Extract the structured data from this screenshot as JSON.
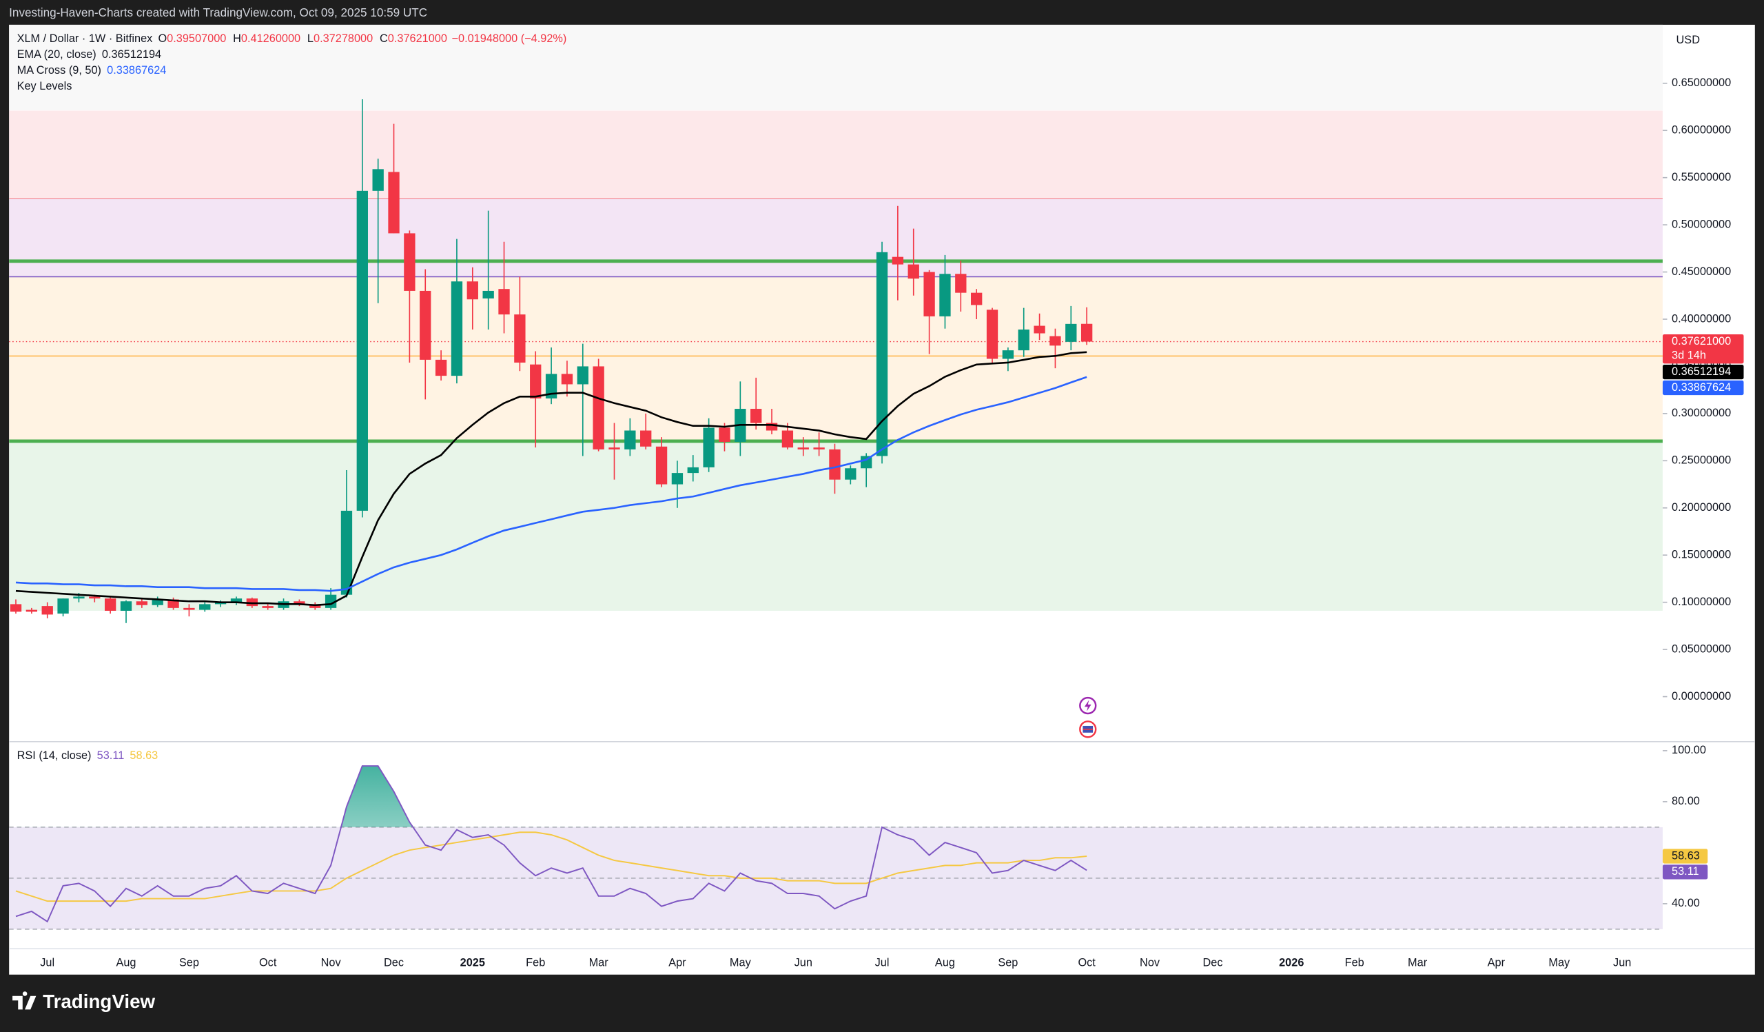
{
  "header": "Investing-Haven-Charts created with TradingView.com, Oct 09, 2025 10:59 UTC",
  "brand": "TradingView",
  "chart_data": [
    {
      "type": "candlestick",
      "title": "XLM / Dollar · 1W · Bitfinex",
      "ohlc_legend": [
        {
          "label": "O",
          "value": "0.39507000"
        },
        {
          "label": "H",
          "value": "0.41260000"
        },
        {
          "label": "L",
          "value": "0.37278000"
        },
        {
          "label": "C",
          "value": "0.37621000"
        }
      ],
      "change": "−0.01948000 (−4.92%)",
      "currency": "USD",
      "countdown": "3d 14h",
      "last_price_label": "0.37621000",
      "x": [
        0,
        1,
        2,
        3,
        4,
        5,
        6,
        7,
        8,
        9,
        10,
        11,
        12,
        13,
        14,
        15,
        16,
        17,
        18,
        19,
        20,
        21,
        22,
        23,
        24,
        25,
        26,
        27,
        28,
        29,
        30,
        31,
        32,
        33,
        34,
        35,
        36,
        37,
        38,
        39,
        40,
        41,
        42,
        43,
        44,
        45,
        46,
        47,
        48,
        49,
        50,
        51,
        52,
        53,
        54,
        55,
        56,
        57,
        58,
        59,
        60,
        61,
        62,
        63,
        64,
        65,
        66,
        67,
        68
      ],
      "xlim": [
        -0.43,
        104.57
      ],
      "xticks": [
        {
          "value": 2,
          "label": "Jul"
        },
        {
          "value": 7,
          "label": "Aug"
        },
        {
          "value": 11,
          "label": "Sep"
        },
        {
          "value": 16,
          "label": "Oct"
        },
        {
          "value": 20,
          "label": "Nov"
        },
        {
          "value": 24,
          "label": "Dec"
        },
        {
          "value": 29,
          "label": "2025"
        },
        {
          "value": 33,
          "label": "Feb"
        },
        {
          "value": 37,
          "label": "Mar"
        },
        {
          "value": 42,
          "label": "Apr"
        },
        {
          "value": 46,
          "label": "May"
        },
        {
          "value": 50,
          "label": "Jun"
        },
        {
          "value": 55,
          "label": "Jul"
        },
        {
          "value": 59,
          "label": "Aug"
        },
        {
          "value": 63,
          "label": "Sep"
        },
        {
          "value": 68,
          "label": "Oct"
        },
        {
          "value": 72,
          "label": "Nov"
        },
        {
          "value": 76,
          "label": "Dec"
        },
        {
          "value": 81,
          "label": "2026"
        },
        {
          "value": 85,
          "label": "Feb"
        },
        {
          "value": 89,
          "label": "Mar"
        },
        {
          "value": 94,
          "label": "Apr"
        },
        {
          "value": 98,
          "label": "May"
        },
        {
          "value": 102,
          "label": "Jun"
        }
      ],
      "ylim": [
        -0.0465,
        0.712
      ],
      "yticks": [
        {
          "value": 0,
          "label": "0.00000000"
        },
        {
          "value": 0.05,
          "label": "0.05000000"
        },
        {
          "value": 0.1,
          "label": "0.10000000"
        },
        {
          "value": 0.15,
          "label": "0.15000000"
        },
        {
          "value": 0.2,
          "label": "0.20000000"
        },
        {
          "value": 0.25,
          "label": "0.25000000"
        },
        {
          "value": 0.3,
          "label": "0.30000000"
        },
        {
          "value": 0.35,
          "label": "0.35000000"
        },
        {
          "value": 0.4,
          "label": "0.40000000"
        },
        {
          "value": 0.45,
          "label": "0.45000000"
        },
        {
          "value": 0.5,
          "label": "0.50000000"
        },
        {
          "value": 0.55,
          "label": "0.55000000"
        },
        {
          "value": 0.6,
          "label": "0.60000000"
        },
        {
          "value": 0.65,
          "label": "0.65000000"
        }
      ],
      "up_color": "#089981",
      "down_color": "#f23645",
      "candles": {
        "open": [
          0.098,
          0.092,
          0.096,
          0.088,
          0.104,
          0.106,
          0.104,
          0.091,
          0.101,
          0.097,
          0.103,
          0.094,
          0.092,
          0.098,
          0.1,
          0.104,
          0.096,
          0.094,
          0.101,
          0.098,
          0.094,
          0.108,
          0.197,
          0.536,
          0.556,
          0.491,
          0.43,
          0.357,
          0.34,
          0.44,
          0.422,
          0.432,
          0.405,
          0.352,
          0.316,
          0.342,
          0.331,
          0.35,
          0.264,
          0.262,
          0.282,
          0.265,
          0.225,
          0.237,
          0.243,
          0.285,
          0.27,
          0.305,
          0.29,
          0.282,
          0.264,
          0.264,
          0.262,
          0.23,
          0.242,
          0.255,
          0.466,
          0.458,
          0.45,
          0.403,
          0.448,
          0.428,
          0.41,
          0.358,
          0.367,
          0.393,
          0.382,
          0.376,
          0.39507
        ],
        "high": [
          0.103,
          0.094,
          0.1,
          0.104,
          0.11,
          0.108,
          0.106,
          0.102,
          0.104,
          0.106,
          0.105,
          0.098,
          0.1,
          0.102,
          0.106,
          0.105,
          0.099,
          0.104,
          0.103,
          0.1,
          0.115,
          0.24,
          0.633,
          0.57,
          0.607,
          0.494,
          0.453,
          0.367,
          0.485,
          0.455,
          0.515,
          0.482,
          0.445,
          0.366,
          0.37,
          0.356,
          0.374,
          0.358,
          0.29,
          0.295,
          0.3,
          0.275,
          0.25,
          0.256,
          0.295,
          0.29,
          0.334,
          0.338,
          0.305,
          0.29,
          0.275,
          0.28,
          0.268,
          0.245,
          0.258,
          0.482,
          0.52,
          0.496,
          0.452,
          0.468,
          0.462,
          0.432,
          0.412,
          0.37,
          0.412,
          0.406,
          0.39,
          0.414,
          0.4126
        ],
        "low": [
          0.088,
          0.088,
          0.083,
          0.085,
          0.1,
          0.1,
          0.088,
          0.078,
          0.094,
          0.095,
          0.092,
          0.085,
          0.09,
          0.095,
          0.097,
          0.094,
          0.092,
          0.092,
          0.096,
          0.092,
          0.092,
          0.105,
          0.19,
          0.417,
          0.491,
          0.354,
          0.315,
          0.335,
          0.332,
          0.389,
          0.389,
          0.385,
          0.345,
          0.264,
          0.31,
          0.318,
          0.255,
          0.26,
          0.23,
          0.255,
          0.262,
          0.222,
          0.2,
          0.228,
          0.238,
          0.26,
          0.255,
          0.283,
          0.278,
          0.262,
          0.255,
          0.255,
          0.215,
          0.225,
          0.222,
          0.247,
          0.42,
          0.425,
          0.363,
          0.39,
          0.408,
          0.4,
          0.353,
          0.345,
          0.36,
          0.378,
          0.348,
          0.367,
          0.37278
        ],
        "close": [
          0.09,
          0.09,
          0.087,
          0.104,
          0.106,
          0.104,
          0.091,
          0.101,
          0.097,
          0.103,
          0.094,
          0.092,
          0.098,
          0.1,
          0.104,
          0.096,
          0.094,
          0.101,
          0.098,
          0.094,
          0.108,
          0.197,
          0.536,
          0.559,
          0.491,
          0.43,
          0.357,
          0.34,
          0.44,
          0.421,
          0.43,
          0.405,
          0.354,
          0.316,
          0.342,
          0.331,
          0.35,
          0.262,
          0.262,
          0.282,
          0.265,
          0.225,
          0.237,
          0.243,
          0.285,
          0.27,
          0.305,
          0.29,
          0.282,
          0.264,
          0.262,
          0.262,
          0.23,
          0.242,
          0.255,
          0.471,
          0.458,
          0.443,
          0.403,
          0.448,
          0.428,
          0.415,
          0.358,
          0.367,
          0.389,
          0.385,
          0.372,
          0.395,
          0.37621
        ]
      },
      "series": [
        {
          "name": "EMA (20, close)",
          "color": "#000000",
          "value_label": "0.36512194",
          "values": [
            0.112,
            0.111,
            0.11,
            0.109,
            0.108,
            0.107,
            0.106,
            0.105,
            0.104,
            0.103,
            0.102,
            0.101,
            0.101,
            0.1,
            0.1,
            0.099,
            0.099,
            0.098,
            0.098,
            0.097,
            0.098,
            0.107,
            0.148,
            0.187,
            0.215,
            0.236,
            0.247,
            0.256,
            0.274,
            0.288,
            0.301,
            0.311,
            0.318,
            0.318,
            0.321,
            0.322,
            0.322,
            0.316,
            0.311,
            0.307,
            0.303,
            0.296,
            0.291,
            0.287,
            0.287,
            0.286,
            0.288,
            0.288,
            0.288,
            0.286,
            0.284,
            0.282,
            0.278,
            0.275,
            0.273,
            0.292,
            0.308,
            0.321,
            0.329,
            0.339,
            0.346,
            0.352,
            0.353,
            0.354,
            0.357,
            0.36,
            0.361,
            0.364,
            0.36512194
          ]
        },
        {
          "name": "MA Cross (9, 50)",
          "color": "#2962ff",
          "value_label": "0.33867624",
          "values": [
            0.121,
            0.12,
            0.12,
            0.119,
            0.119,
            0.118,
            0.118,
            0.117,
            0.117,
            0.116,
            0.116,
            0.116,
            0.115,
            0.115,
            0.115,
            0.114,
            0.114,
            0.114,
            0.113,
            0.113,
            0.112,
            0.114,
            0.122,
            0.13,
            0.137,
            0.142,
            0.146,
            0.15,
            0.156,
            0.163,
            0.17,
            0.176,
            0.18,
            0.184,
            0.188,
            0.192,
            0.196,
            0.198,
            0.2,
            0.203,
            0.205,
            0.207,
            0.21,
            0.212,
            0.216,
            0.22,
            0.224,
            0.227,
            0.23,
            0.233,
            0.236,
            0.24,
            0.243,
            0.247,
            0.251,
            0.262,
            0.272,
            0.28,
            0.287,
            0.293,
            0.299,
            0.304,
            0.308,
            0.312,
            0.317,
            0.322,
            0.327,
            0.333,
            0.33867624
          ]
        }
      ],
      "key_levels": {
        "name": "Key Levels",
        "zones": [
          {
            "from": 0.091,
            "to": 0.2707,
            "color": "#e8f5e9"
          },
          {
            "from": 0.2707,
            "to": 0.445,
            "color": "#fff3e3"
          },
          {
            "from": 0.445,
            "to": 0.528,
            "color": "#f3e5f5"
          },
          {
            "from": 0.528,
            "to": 0.621,
            "color": "#fde8ea"
          }
        ],
        "lines": [
          {
            "value": 0.4615,
            "color": "#4caf50",
            "width": 3
          },
          {
            "value": 0.2707,
            "color": "#4caf50",
            "width": 3
          },
          {
            "value": 0.445,
            "color": "#7e57c2",
            "width": 1
          },
          {
            "value": 0.528,
            "color": "#f7a1a8",
            "width": 1
          },
          {
            "value": 0.361,
            "color": "#ffb74d",
            "width": 1
          }
        ]
      }
    },
    {
      "type": "line",
      "title": "RSI (14, close)",
      "ylim": [
        22.35,
        103.1
      ],
      "yticks": [
        {
          "value": 100,
          "label": "100.00"
        },
        {
          "value": 80,
          "label": "80.00"
        },
        {
          "value": 40,
          "label": "40.00"
        }
      ],
      "bands": {
        "upper": 70,
        "middle": 50,
        "lower": 30,
        "color": "#ede7f6"
      },
      "series": [
        {
          "color": "#7e57c2",
          "value_label": "53.11",
          "values": [
            35,
            37,
            33,
            47,
            48,
            45,
            39,
            46,
            43,
            47,
            43,
            43,
            46,
            47,
            51,
            45,
            44,
            48,
            46,
            44,
            55,
            78,
            94,
            94,
            84,
            72,
            63,
            61,
            69,
            66,
            67,
            63,
            56,
            51,
            54,
            52,
            54,
            43,
            43,
            46,
            44,
            39,
            41,
            42,
            48,
            45,
            52,
            49,
            48,
            44,
            44,
            43,
            38,
            41,
            43,
            70,
            67,
            65,
            59,
            64,
            62,
            60,
            52,
            53,
            57,
            55,
            53,
            57,
            53.11
          ]
        },
        {
          "color": "#f5c842",
          "value_label": "58.63",
          "values": [
            45,
            43,
            41,
            41,
            41,
            41,
            41,
            41,
            42,
            42,
            42,
            42,
            42,
            43,
            44,
            45,
            45,
            45,
            45,
            45,
            46,
            50,
            53,
            56,
            59,
            61,
            62,
            63,
            64,
            65,
            66,
            67,
            68,
            68,
            67,
            65,
            62,
            59,
            57,
            56,
            55,
            54,
            53,
            52,
            51,
            51,
            50,
            50,
            50,
            49,
            49,
            49,
            48,
            48,
            48,
            50,
            52,
            53,
            54,
            55,
            55,
            56,
            56,
            56,
            57,
            57,
            58,
            58,
            58.63
          ]
        }
      ]
    }
  ]
}
